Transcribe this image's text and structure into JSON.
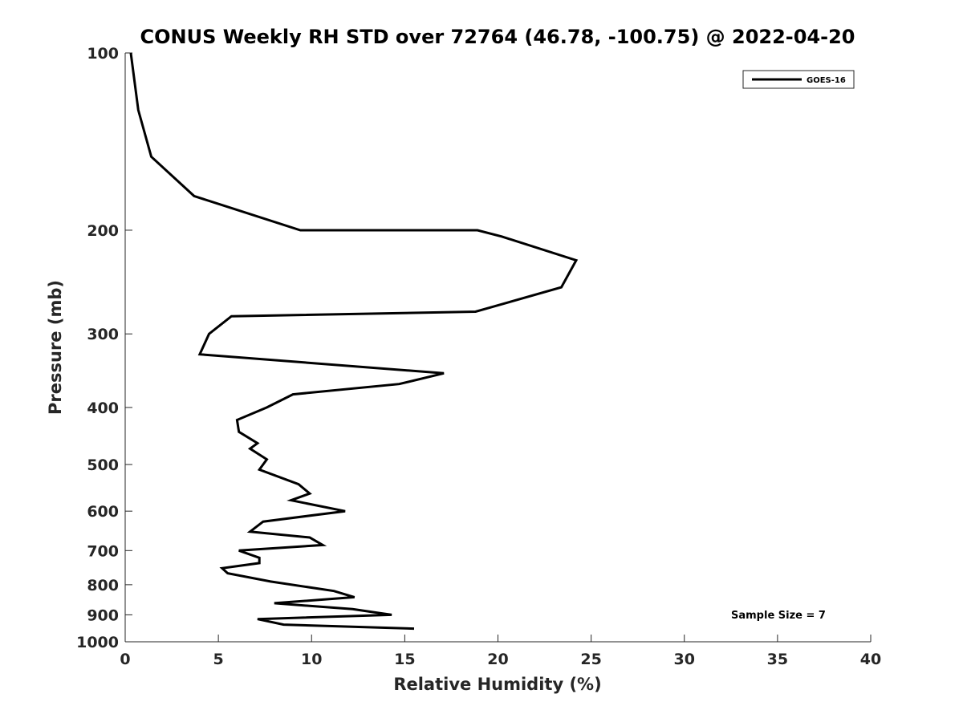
{
  "chart_data": {
    "type": "line",
    "title": "CONUS Weekly RH STD over 72764 (46.78, -100.75) @ 2022-04-20",
    "xlabel": "Relative Humidity (%)",
    "ylabel": "Pressure (mb)",
    "xlim": [
      0,
      40
    ],
    "ylim": [
      100,
      1000
    ],
    "yscale": "log",
    "yreversed": true,
    "xticks": [
      0,
      5,
      10,
      15,
      20,
      25,
      30,
      35,
      40
    ],
    "yticks": [
      100,
      200,
      300,
      400,
      500,
      600,
      700,
      800,
      900,
      1000
    ],
    "grid": false,
    "legend_position": "top-right",
    "series": [
      {
        "name": "GOES-16",
        "color": "#000000",
        "points": [
          [
            0.3,
            100
          ],
          [
            0.7,
            125
          ],
          [
            1.4,
            150
          ],
          [
            3.7,
            175
          ],
          [
            9.4,
            200
          ],
          [
            18.9,
            200
          ],
          [
            20.2,
            205
          ],
          [
            24.2,
            225
          ],
          [
            23.4,
            250
          ],
          [
            18.8,
            275
          ],
          [
            5.7,
            280
          ],
          [
            4.5,
            300
          ],
          [
            4.0,
            325
          ],
          [
            17.1,
            350
          ],
          [
            14.7,
            365
          ],
          [
            9.0,
            380
          ],
          [
            7.6,
            400
          ],
          [
            6.0,
            420
          ],
          [
            6.1,
            440
          ],
          [
            7.1,
            460
          ],
          [
            6.7,
            470
          ],
          [
            7.6,
            490
          ],
          [
            7.2,
            510
          ],
          [
            9.3,
            540
          ],
          [
            9.9,
            560
          ],
          [
            8.9,
            575
          ],
          [
            11.8,
            600
          ],
          [
            7.4,
            625
          ],
          [
            6.7,
            650
          ],
          [
            9.9,
            665
          ],
          [
            10.6,
            685
          ],
          [
            6.1,
            700
          ],
          [
            7.2,
            720
          ],
          [
            7.2,
            735
          ],
          [
            5.2,
            750
          ],
          [
            5.5,
            765
          ],
          [
            7.8,
            790
          ],
          [
            11.2,
            820
          ],
          [
            12.3,
            840
          ],
          [
            8.0,
            860
          ],
          [
            12.2,
            880
          ],
          [
            14.3,
            900
          ],
          [
            7.1,
            915
          ],
          [
            8.5,
            935
          ],
          [
            15.5,
            950
          ]
        ]
      }
    ],
    "annotation": "Sample Size = 7"
  }
}
